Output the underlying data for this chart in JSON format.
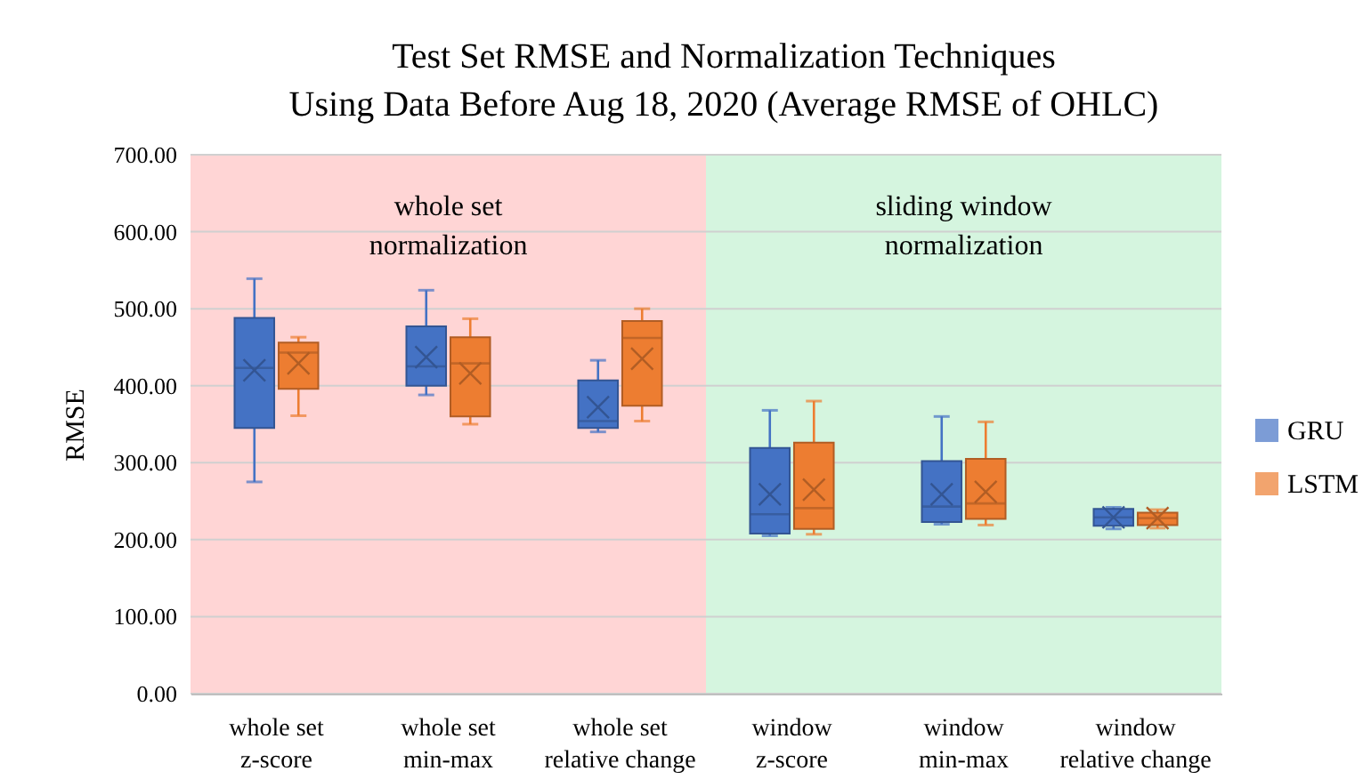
{
  "chart_data": {
    "type": "box",
    "title": "Test Set RMSE and Normalization Techniques\nUsing Data Before Aug 18, 2020 (Average RMSE of OHLC)",
    "ylabel": "RMSE",
    "categories": [
      "whole set\nz-score",
      "whole set\nmin-max",
      "whole set\nrelative change",
      "window\nz-score",
      "window\nmin-max",
      "window\nrelative change"
    ],
    "series": [
      {
        "name": "GRU",
        "color": "#4472c4",
        "boxes": [
          {
            "low": 275,
            "q1": 345,
            "median": 423,
            "q3": 488,
            "high": 539,
            "mean": 420
          },
          {
            "low": 388,
            "q1": 400,
            "median": 425,
            "q3": 477,
            "high": 524,
            "mean": 437
          },
          {
            "low": 340,
            "q1": 345,
            "median": 354,
            "q3": 407,
            "high": 433,
            "mean": 372
          },
          {
            "low": 205,
            "q1": 208,
            "median": 233,
            "q3": 319,
            "high": 368,
            "mean": 259
          },
          {
            "low": 220,
            "q1": 223,
            "median": 243,
            "q3": 302,
            "high": 360,
            "mean": 259
          },
          {
            "low": 214,
            "q1": 218,
            "median": 229,
            "q3": 240,
            "high": 242,
            "mean": 229
          }
        ]
      },
      {
        "name": "LSTM",
        "color": "#ed7d31",
        "boxes": [
          {
            "low": 361,
            "q1": 396,
            "median": 443,
            "q3": 456,
            "high": 463,
            "mean": 429
          },
          {
            "low": 350,
            "q1": 360,
            "median": 429,
            "q3": 463,
            "high": 487,
            "mean": 416
          },
          {
            "low": 354,
            "q1": 374,
            "median": 462,
            "q3": 484,
            "high": 500,
            "mean": 435
          },
          {
            "low": 207,
            "q1": 214,
            "median": 241,
            "q3": 326,
            "high": 380,
            "mean": 265
          },
          {
            "low": 219,
            "q1": 227,
            "median": 247,
            "q3": 305,
            "high": 353,
            "mean": 262
          },
          {
            "low": 215,
            "q1": 219,
            "median": 228,
            "q3": 235,
            "high": 239,
            "mean": 228
          }
        ]
      }
    ],
    "ylim": [
      0,
      700
    ],
    "yticks": [
      {
        "value": 0,
        "label": "0.00"
      },
      {
        "value": 100,
        "label": "100.00"
      },
      {
        "value": 200,
        "label": "200.00"
      },
      {
        "value": 300,
        "label": "300.00"
      },
      {
        "value": 400,
        "label": "400.00"
      },
      {
        "value": 500,
        "label": "500.00"
      },
      {
        "value": 600,
        "label": "600.00"
      },
      {
        "value": 700,
        "label": "700.00"
      }
    ],
    "grid": "y",
    "legend": "right",
    "bands": [
      {
        "axis": "x",
        "from": "whole set\nz-score",
        "to": "whole set\nrelative change",
        "label": "whole set\nnormalization",
        "color": "#ffd5d5"
      },
      {
        "axis": "x",
        "from": "window\nz-score",
        "to": "window\nrelative change",
        "label": "sliding window\nnormalization",
        "color": "#d5f5df"
      }
    ]
  }
}
